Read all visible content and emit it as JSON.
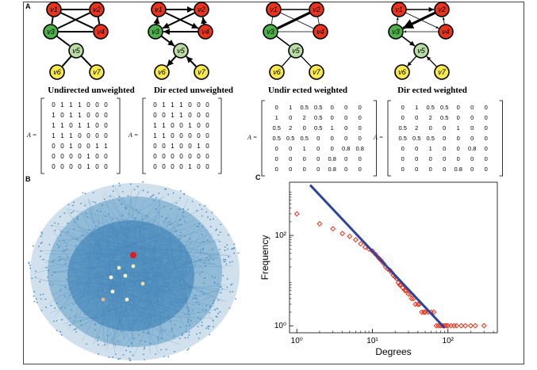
{
  "panels": {
    "a": "A",
    "b": "B",
    "c": "C"
  },
  "graphs": [
    {
      "title": "Undirected unweighted",
      "directed": false,
      "weighted": false
    },
    {
      "title": "Dir ected unweighted",
      "directed": true,
      "weighted": false
    },
    {
      "title": "Undir ected weighted",
      "directed": false,
      "weighted": true
    },
    {
      "title": "Dir ected weighted",
      "directed": true,
      "weighted": true
    }
  ],
  "nodes": [
    "v1",
    "v2",
    "v3",
    "v4",
    "v5",
    "v6",
    "v7"
  ],
  "node_colors": {
    "red": "#e8341c",
    "green": "#4db04a",
    "lightgreen": "#b9dba4",
    "yellow": "#f7e84b"
  },
  "matrix_label": "A =",
  "matrices": [
    [
      [
        "0",
        "1",
        "1",
        "1",
        "0",
        "0",
        "0"
      ],
      [
        "1",
        "0",
        "1",
        "1",
        "0",
        "0",
        "0"
      ],
      [
        "1",
        "1",
        "0",
        "1",
        "1",
        "0",
        "0"
      ],
      [
        "1",
        "1",
        "1",
        "0",
        "0",
        "0",
        "0"
      ],
      [
        "0",
        "0",
        "1",
        "0",
        "0",
        "1",
        "1"
      ],
      [
        "0",
        "0",
        "0",
        "0",
        "1",
        "0",
        "0"
      ],
      [
        "0",
        "0",
        "0",
        "0",
        "1",
        "0",
        "0"
      ]
    ],
    [
      [
        "0",
        "1",
        "1",
        "1",
        "0",
        "0",
        "0"
      ],
      [
        "0",
        "0",
        "1",
        "1",
        "0",
        "0",
        "0"
      ],
      [
        "1",
        "1",
        "0",
        "0",
        "1",
        "0",
        "0"
      ],
      [
        "1",
        "1",
        "0",
        "0",
        "0",
        "0",
        "0"
      ],
      [
        "0",
        "0",
        "1",
        "0",
        "0",
        "1",
        "0"
      ],
      [
        "0",
        "0",
        "0",
        "0",
        "0",
        "0",
        "0"
      ],
      [
        "0",
        "0",
        "0",
        "0",
        "1",
        "0",
        "0"
      ]
    ],
    [
      [
        "0",
        "1",
        "0.5",
        "0.5",
        "0",
        "0",
        "0"
      ],
      [
        "1",
        "0",
        "2",
        "0.5",
        "0",
        "0",
        "0"
      ],
      [
        "0.5",
        "2",
        "0",
        "0.5",
        "1",
        "0",
        "0"
      ],
      [
        "0.5",
        "0.5",
        "0.5",
        "0",
        "0",
        "0",
        "0"
      ],
      [
        "0",
        "0",
        "1",
        "0",
        "0",
        "0.8",
        "0.8"
      ],
      [
        "0",
        "0",
        "0",
        "0",
        "0.8",
        "0",
        "0"
      ],
      [
        "0",
        "0",
        "0",
        "0",
        "0.8",
        "0",
        "0"
      ]
    ],
    [
      [
        "0",
        "1",
        "0.5",
        "0.5",
        "0",
        "0",
        "0"
      ],
      [
        "0",
        "0",
        "2",
        "0.5",
        "0",
        "0",
        "0"
      ],
      [
        "0.5",
        "2",
        "0",
        "0",
        "1",
        "0",
        "0"
      ],
      [
        "0.5",
        "0.5",
        "0.5",
        "0",
        "0",
        "0",
        "0"
      ],
      [
        "0",
        "0",
        "1",
        "0",
        "0",
        "0.8",
        "0"
      ],
      [
        "0",
        "0",
        "0",
        "0",
        "0",
        "0",
        "0"
      ],
      [
        "0",
        "0",
        "0",
        "0",
        "0.8",
        "0",
        "0"
      ]
    ]
  ],
  "chart_data": {
    "type": "scatter",
    "xlabel": "Degrees",
    "ylabel": "Frequency",
    "xscale": "log",
    "yscale": "log",
    "xlim": [
      0.8,
      450
    ],
    "ylim": [
      0.7,
      1500
    ],
    "xticks": [
      1,
      10,
      100
    ],
    "xtick_labels": [
      "10⁰",
      "10¹",
      "10²"
    ],
    "yticks": [
      1,
      100
    ],
    "ytick_labels": [
      "10⁰",
      "10²"
    ],
    "marker_color": "#e8341c",
    "fit_color": "#2c44a0",
    "points": [
      [
        1,
        300
      ],
      [
        2,
        180
      ],
      [
        3,
        140
      ],
      [
        4,
        110
      ],
      [
        5,
        95
      ],
      [
        6,
        80
      ],
      [
        7,
        65
      ],
      [
        8,
        55
      ],
      [
        9,
        50
      ],
      [
        10,
        45
      ],
      [
        11,
        38
      ],
      [
        12,
        32
      ],
      [
        13,
        28
      ],
      [
        14,
        24
      ],
      [
        15,
        20
      ],
      [
        16,
        18
      ],
      [
        17,
        17
      ],
      [
        18,
        15
      ],
      [
        19,
        13
      ],
      [
        20,
        12
      ],
      [
        21,
        11
      ],
      [
        22,
        9
      ],
      [
        23,
        8
      ],
      [
        24,
        8
      ],
      [
        25,
        7
      ],
      [
        27,
        6
      ],
      [
        28,
        6
      ],
      [
        30,
        5
      ],
      [
        32,
        5
      ],
      [
        33,
        4
      ],
      [
        35,
        4
      ],
      [
        37,
        3
      ],
      [
        40,
        3
      ],
      [
        42,
        3
      ],
      [
        45,
        2
      ],
      [
        48,
        2
      ],
      [
        50,
        2
      ],
      [
        55,
        2
      ],
      [
        60,
        2
      ],
      [
        65,
        2
      ],
      [
        70,
        1
      ],
      [
        75,
        1
      ],
      [
        80,
        1
      ],
      [
        85,
        1
      ],
      [
        90,
        1
      ],
      [
        95,
        1
      ],
      [
        100,
        1
      ],
      [
        110,
        1
      ],
      [
        120,
        1
      ],
      [
        130,
        1
      ],
      [
        150,
        1
      ],
      [
        170,
        1
      ],
      [
        200,
        1
      ],
      [
        230,
        1
      ],
      [
        300,
        1
      ]
    ],
    "fit_line": [
      [
        1.5,
        1300
      ],
      [
        90,
        0.9
      ]
    ]
  }
}
